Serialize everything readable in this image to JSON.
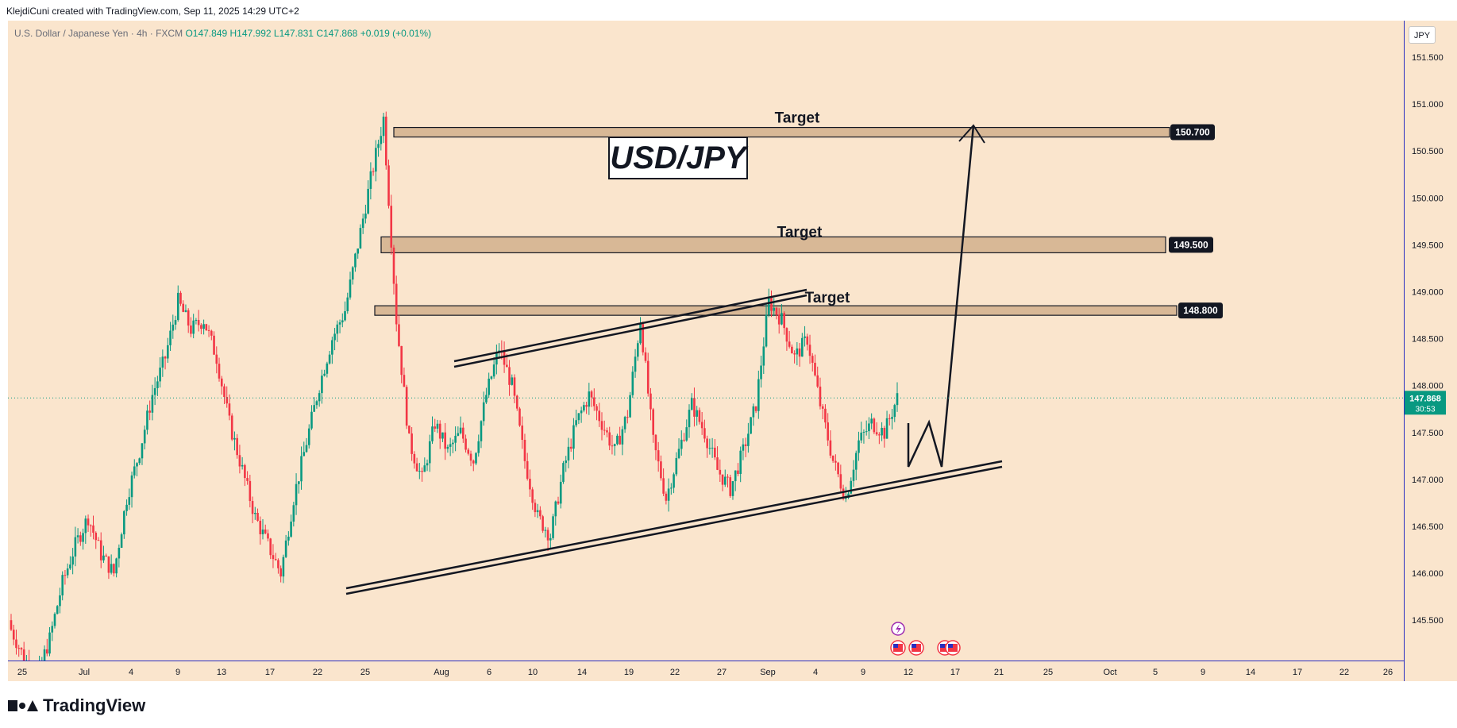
{
  "credit": "KlejdiCuni created with TradingView.com, Sep 11, 2025 14:29 UTC+2",
  "header": {
    "symbol": "U.S. Dollar / Japanese Yen · 4h · FXCM",
    "open": "O147.849",
    "high": "H147.992",
    "low": "L147.831",
    "close": "C147.868",
    "change": "+0.019 (+0.01%)"
  },
  "currency": "JPY",
  "annotation_title": "USD/JPY",
  "brand": "TradingView",
  "colors": {
    "background": "#fae5cd",
    "bull": "#089981",
    "bear": "#f23645",
    "zone": "#d8b896",
    "axis_line": "#2a2ec0",
    "last_price": "#089981"
  },
  "icons": [
    "lightning-event-icon",
    "us-flag-event-icon",
    "us-flag-event-icon",
    "us-flag-event-icon",
    "us-flag-event-icon"
  ],
  "chart_data": {
    "type": "candlestick",
    "timeframe": "4h",
    "price_axis": {
      "ticks": [
        "151.500",
        "151.000",
        "150.500",
        "150.000",
        "149.500",
        "149.000",
        "148.500",
        "148.000",
        "147.500",
        "147.000",
        "146.500",
        "146.000",
        "145.500"
      ],
      "ylim": [
        145.07,
        151.78
      ]
    },
    "time_axis": {
      "ticks": [
        "25",
        "Jul",
        "4",
        "9",
        "13",
        "17",
        "22",
        "25",
        "Aug",
        "6",
        "10",
        "14",
        "19",
        "22",
        "27",
        "Sep",
        "4",
        "9",
        "12",
        "17",
        "21",
        "25",
        "Oct",
        "5",
        "9",
        "14",
        "17",
        "22",
        "26"
      ]
    },
    "last_price": {
      "value": "147.868",
      "countdown": "30:53"
    },
    "targets": [
      {
        "label": "Target",
        "price": 150.7,
        "badge": "150.700"
      },
      {
        "label": "Target",
        "price": 149.5,
        "badge": "149.500"
      },
      {
        "label": "Target",
        "price": 148.8,
        "badge": "148.800"
      }
    ],
    "path_points": [
      [
        148.25,
        147.55
      ],
      [
        147.85,
        147.55
      ]
    ],
    "candles_close": [
      145.4,
      145.1,
      144.9,
      145.3,
      145.9,
      146.3,
      146.6,
      146.2,
      146.0,
      146.8,
      147.3,
      147.9,
      148.3,
      148.9,
      148.6,
      148.7,
      148.3,
      147.6,
      147.1,
      146.6,
      146.3,
      146.0,
      146.8,
      147.4,
      148.0,
      148.5,
      148.8,
      149.5,
      150.2,
      150.85,
      148.7,
      147.4,
      147.0,
      147.6,
      147.3,
      147.5,
      147.2,
      147.9,
      148.4,
      148.0,
      147.2,
      146.6,
      146.4,
      147.1,
      147.6,
      147.9,
      147.6,
      147.3,
      147.7,
      148.7,
      147.4,
      146.8,
      147.3,
      147.8,
      147.5,
      147.1,
      146.9,
      147.3,
      147.8,
      148.9,
      148.7,
      148.3,
      148.5,
      147.8,
      147.2,
      146.8,
      147.4,
      147.6,
      147.5,
      147.87
    ]
  }
}
